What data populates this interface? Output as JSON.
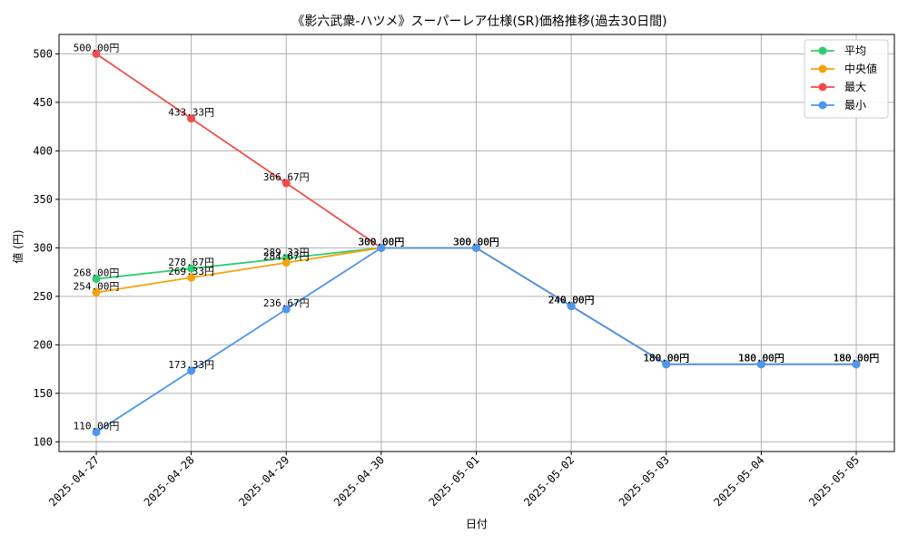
{
  "chart_data": {
    "type": "line",
    "title": "《影六武衆-ハツメ》スーパーレア仕様(SR)価格推移(過去30日間)",
    "xlabel": "日付",
    "ylabel": "値 (円)",
    "x": [
      "2025-04-27",
      "2025-04-28",
      "2025-04-29",
      "2025-04-30",
      "2025-05-01",
      "2025-05-02",
      "2025-05-03",
      "2025-05-04",
      "2025-05-05"
    ],
    "ylim": [
      90,
      520
    ],
    "yticks": [
      100,
      150,
      200,
      250,
      300,
      350,
      400,
      450,
      500
    ],
    "grid": true,
    "legend_position": "top-right",
    "value_suffix": "円",
    "series": [
      {
        "name": "平均",
        "color": "#2ecc71",
        "values": [
          268.0,
          278.67,
          289.33,
          300.0,
          300.0,
          240.0,
          180.0,
          180.0,
          180.0
        ]
      },
      {
        "name": "中央値",
        "color": "#f5a30c",
        "values": [
          254.0,
          269.33,
          284.67,
          300.0,
          300.0,
          240.0,
          180.0,
          180.0,
          180.0
        ]
      },
      {
        "name": "最大",
        "color": "#f24c4c",
        "values": [
          500.0,
          433.33,
          366.67,
          300.0,
          300.0,
          240.0,
          180.0,
          180.0,
          180.0
        ]
      },
      {
        "name": "最小",
        "color": "#4d96f0",
        "values": [
          110.0,
          173.33,
          236.67,
          300.0,
          300.0,
          240.0,
          180.0,
          180.0,
          180.0
        ]
      }
    ]
  }
}
